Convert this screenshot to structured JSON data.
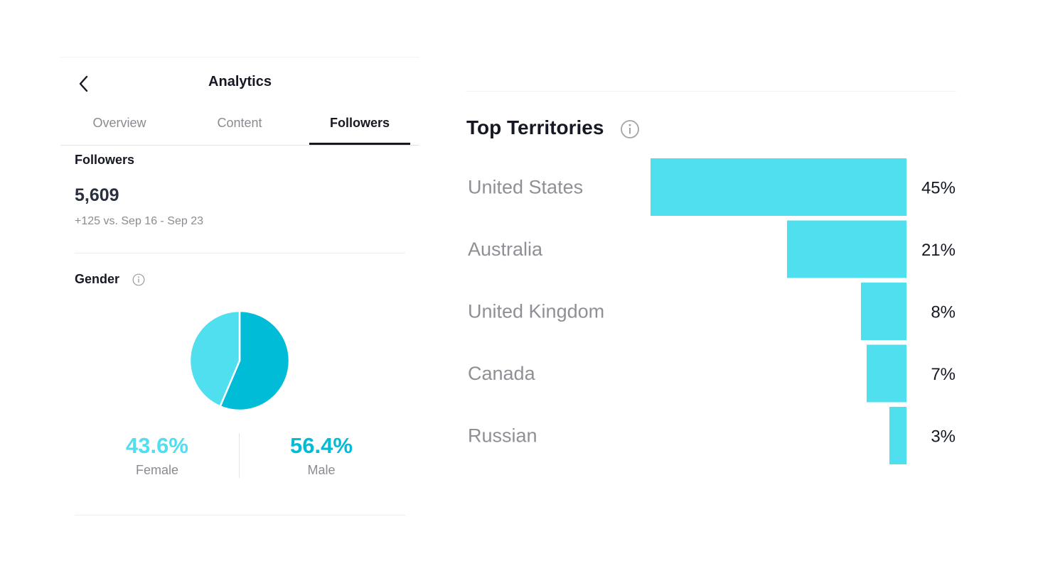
{
  "header": {
    "title": "Analytics"
  },
  "tabs": [
    {
      "label": "Overview"
    },
    {
      "label": "Content"
    },
    {
      "label": "Followers",
      "active": true
    }
  ],
  "followers": {
    "title": "Followers",
    "count": "5,609",
    "delta": "+125 vs. Sep 16 - Sep 23"
  },
  "gender": {
    "title": "Gender",
    "female": {
      "value": "43.6%",
      "label": "Female",
      "share": 43.6,
      "color": "#4fdfef"
    },
    "male": {
      "value": "56.4%",
      "label": "Male",
      "share": 56.4,
      "color": "#00bcd6"
    }
  },
  "territories": {
    "title": "Top Territories",
    "bar_color": "#4fdfef"
  },
  "chart_data": {
    "type": "bar",
    "orientation": "horizontal",
    "title": "Top Territories",
    "categories": [
      "United States",
      "Australia",
      "United Kingdom",
      "Canada",
      "Russian"
    ],
    "values": [
      45,
      21,
      8,
      7,
      3
    ],
    "value_labels": [
      "45%",
      "21%",
      "8%",
      "7%",
      "3%"
    ],
    "unit": "%",
    "xlim": [
      0,
      45
    ],
    "grid": false,
    "legend": "none"
  }
}
